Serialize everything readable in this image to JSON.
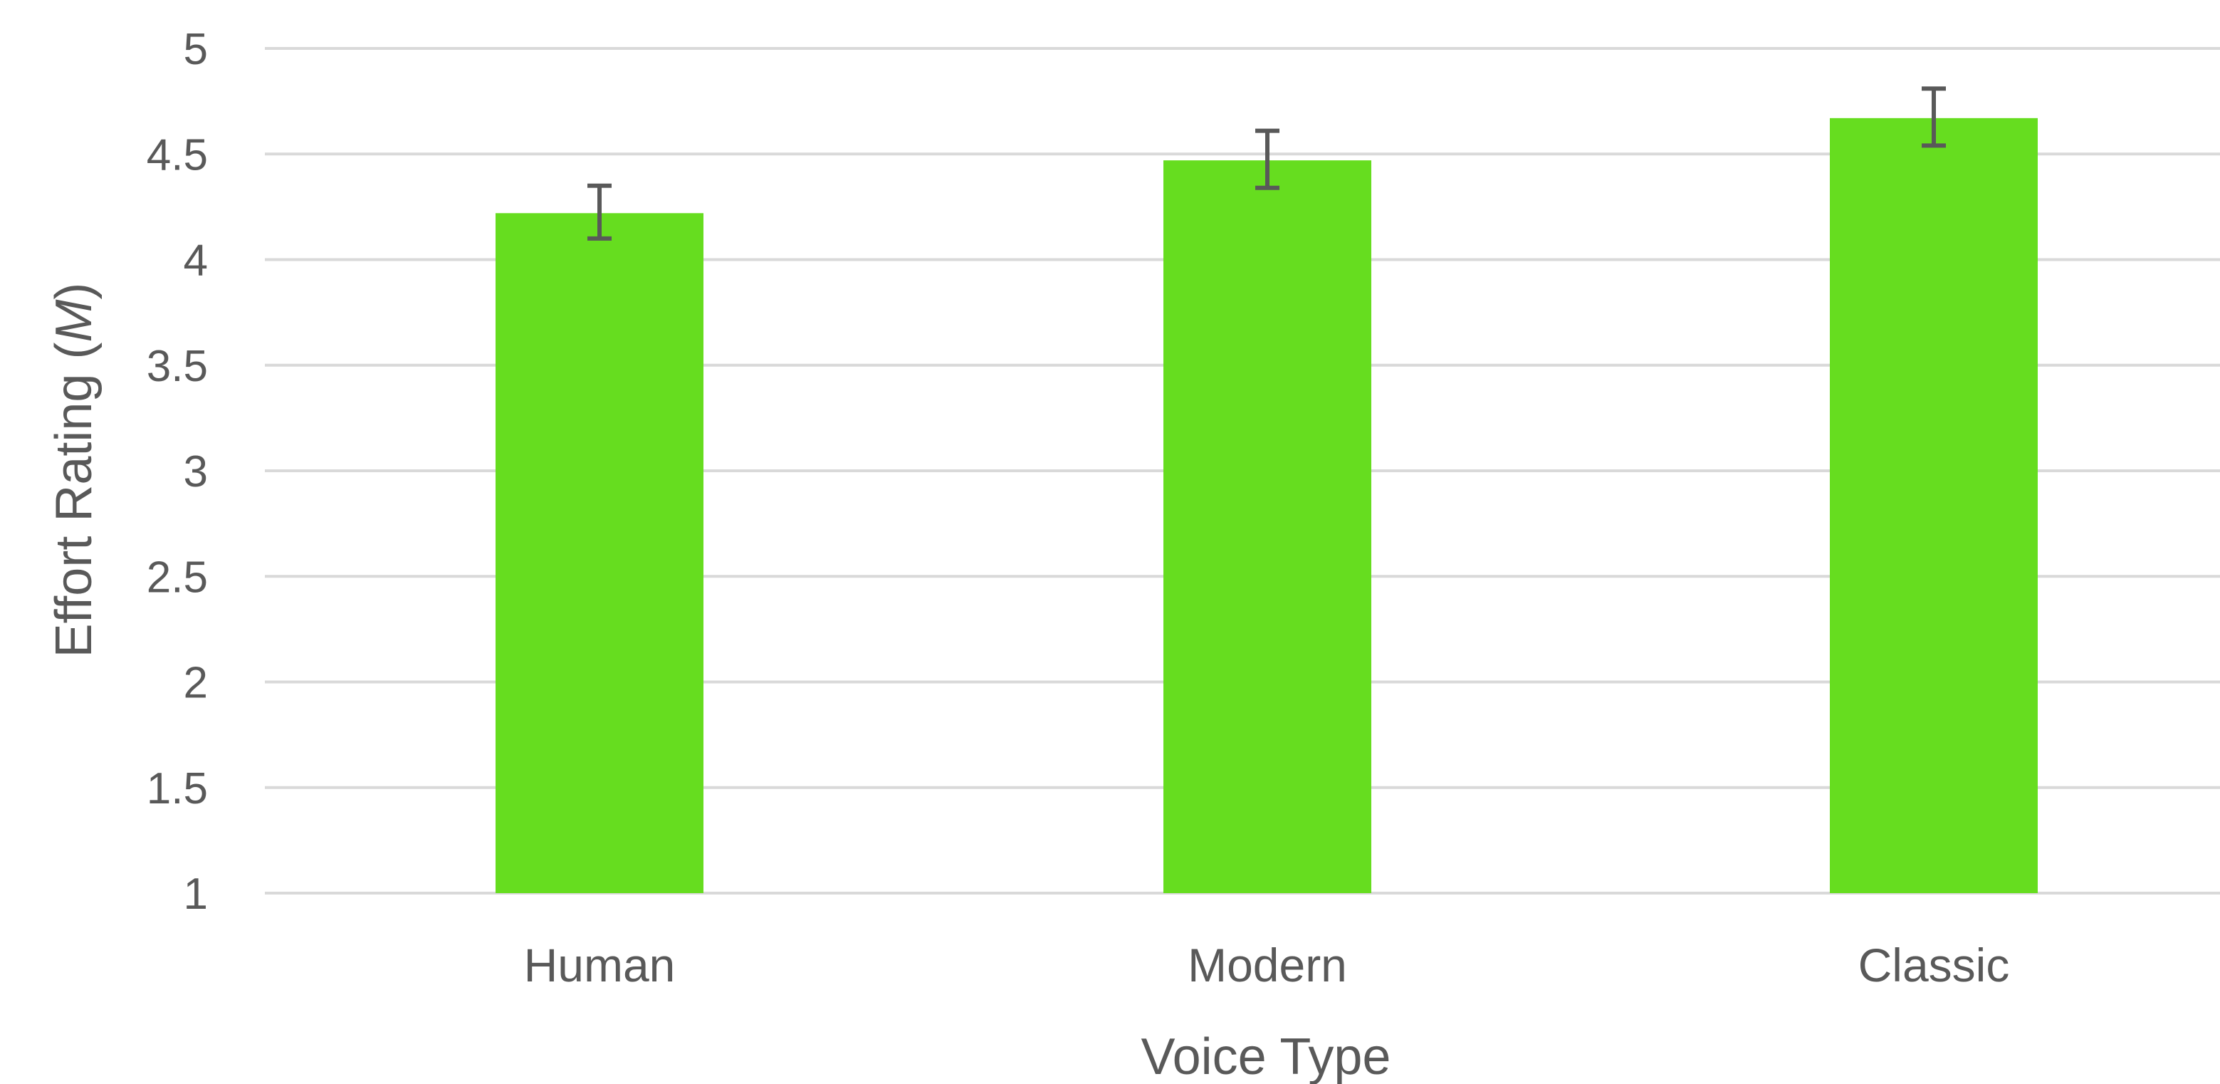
{
  "chart_data": {
    "type": "bar",
    "categories": [
      "Human",
      "Modern",
      "Classic"
    ],
    "values": [
      4.22,
      4.47,
      4.67
    ],
    "error_low": [
      4.1,
      4.34,
      4.54
    ],
    "error_high": [
      4.35,
      4.61,
      4.81
    ],
    "xlabel": "Voice Type",
    "ylabel_prefix": "Effort  Rating (",
    "ylabel_italic": "M",
    "ylabel_suffix": ")",
    "ylim": [
      1,
      5
    ],
    "yticks": [
      1,
      1.5,
      2,
      2.5,
      3,
      3.5,
      4,
      4.5,
      5
    ],
    "grid": true,
    "bar_color": "#66dd1f",
    "error_bar_color": "#595959",
    "grid_color": "#d9d9d9"
  }
}
